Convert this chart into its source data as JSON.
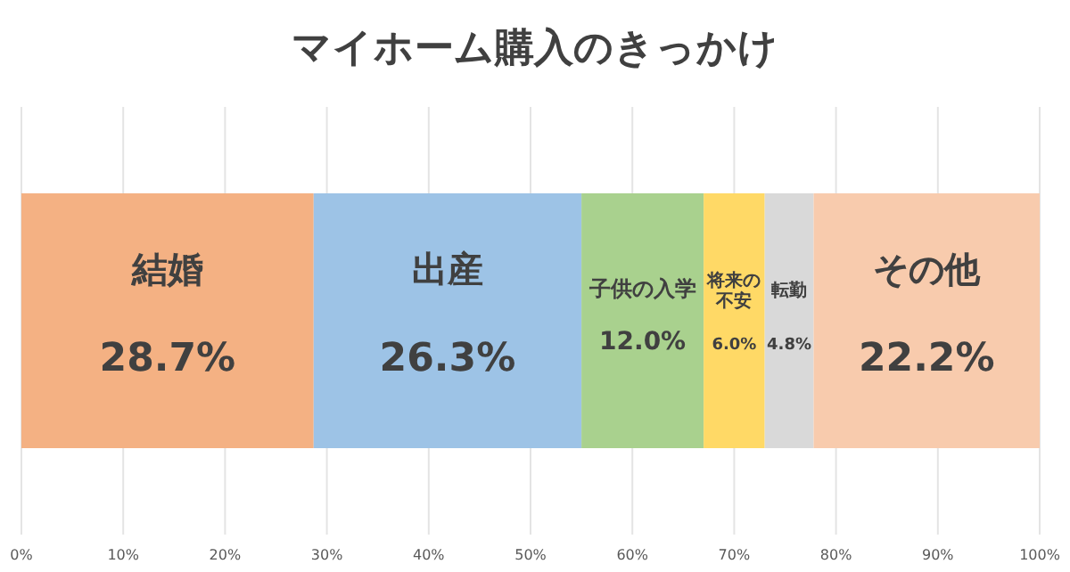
{
  "chart_data": {
    "type": "bar",
    "orientation": "horizontal",
    "stacked": true,
    "title": "マイホーム購入のきっかけ",
    "categories": [
      null
    ],
    "series": [
      {
        "name": "結婚",
        "color": "#f4b183",
        "values": [
          28.7
        ],
        "value_labels": [
          "28.7%"
        ]
      },
      {
        "name": "出産",
        "color": "#9dc3e6",
        "values": [
          26.3
        ],
        "value_labels": [
          "26.3%"
        ]
      },
      {
        "name": "子供の入学",
        "color": "#a9d18e",
        "values": [
          12.0
        ],
        "value_labels": [
          "12.0%"
        ]
      },
      {
        "name": "将来の不安",
        "color": "#ffd966",
        "values": [
          6.0
        ],
        "value_labels": [
          "6.0%"
        ]
      },
      {
        "name": "転勤",
        "color": "#d9d9d9",
        "values": [
          4.8
        ],
        "value_labels": [
          "4.8%"
        ]
      },
      {
        "name": "その他",
        "color": "#f8cbad",
        "values": [
          22.2
        ],
        "value_labels": [
          "22.2%"
        ]
      }
    ],
    "xlim": [
      0,
      100
    ],
    "xticks": [
      {
        "value": 0,
        "label": "0%"
      },
      {
        "value": 10,
        "label": "10%"
      },
      {
        "value": 20,
        "label": "20%"
      },
      {
        "value": 30,
        "label": "30%"
      },
      {
        "value": 40,
        "label": "40%"
      },
      {
        "value": 50,
        "label": "50%"
      },
      {
        "value": 60,
        "label": "60%"
      },
      {
        "value": 70,
        "label": "70%"
      },
      {
        "value": 80,
        "label": "80%"
      },
      {
        "value": 90,
        "label": "90%"
      },
      {
        "value": 100,
        "label": "100%"
      }
    ],
    "grid": "x"
  }
}
